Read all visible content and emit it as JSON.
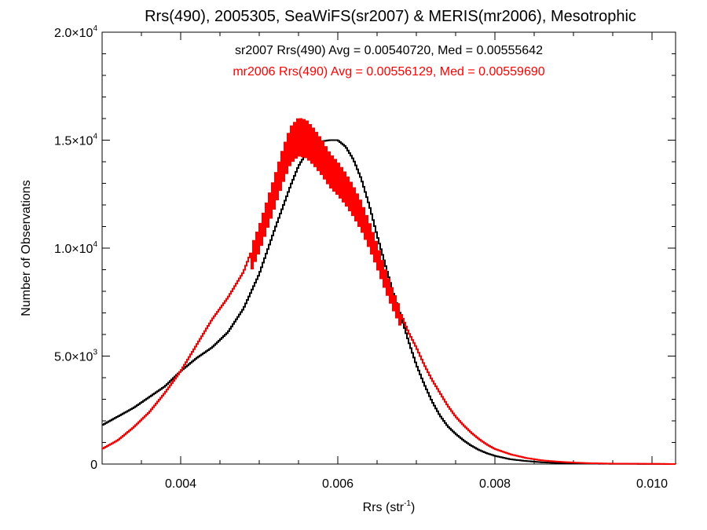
{
  "chart_data": {
    "type": "line",
    "title": "Rrs(490), 2005305, SeaWiFS(sr2007) & MERIS(mr2006), Mesotrophic",
    "xlabel_main": "Rrs (str",
    "xlabel_sup": "-1",
    "xlabel_close": ")",
    "ylabel": "Number of Observations",
    "xlim": [
      0.003,
      0.0103
    ],
    "ylim": [
      0,
      20000
    ],
    "x_ticks": [
      {
        "value": 0.004,
        "label": "0.004"
      },
      {
        "value": 0.006,
        "label": "0.006"
      },
      {
        "value": 0.008,
        "label": "0.008"
      },
      {
        "value": 0.01,
        "label": "0.010"
      }
    ],
    "y_ticks": [
      {
        "value": 0,
        "mantissa": "0",
        "exp": ""
      },
      {
        "value": 5000,
        "mantissa": "5.0×10",
        "exp": "3"
      },
      {
        "value": 10000,
        "mantissa": "1.0×10",
        "exp": "4"
      },
      {
        "value": 15000,
        "mantissa": "1.5×10",
        "exp": "4"
      },
      {
        "value": 20000,
        "mantissa": "2.0×10",
        "exp": "4"
      }
    ],
    "grid": false,
    "legend_position": "top-center",
    "series": [
      {
        "name": "sr2007 Rrs(490) Avg = 0.00540720, Med = 0.00555642",
        "color": "#000000",
        "x": [
          0.003,
          0.0032,
          0.0034,
          0.0036,
          0.0038,
          0.004,
          0.0042,
          0.0044,
          0.0046,
          0.0048,
          0.005,
          0.0052,
          0.0054,
          0.0055,
          0.0056,
          0.0057,
          0.0058,
          0.0059,
          0.006,
          0.0061,
          0.0062,
          0.0063,
          0.0064,
          0.0065,
          0.0066,
          0.0067,
          0.0068,
          0.0069,
          0.007,
          0.0071,
          0.0072,
          0.0073,
          0.0074,
          0.0075,
          0.0076,
          0.0077,
          0.0078,
          0.0079,
          0.008,
          0.0082,
          0.0084,
          0.0086,
          0.0088,
          0.009,
          0.0092,
          0.0095,
          0.01,
          0.0103
        ],
        "y": [
          1800,
          2200,
          2600,
          3100,
          3600,
          4300,
          4900,
          5400,
          6100,
          7200,
          8800,
          10900,
          12900,
          13800,
          14400,
          14800,
          14950,
          15000,
          15000,
          14700,
          14100,
          13200,
          12000,
          10600,
          9300,
          8000,
          6900,
          5700,
          4600,
          3700,
          2900,
          2250,
          1750,
          1400,
          1100,
          850,
          650,
          500,
          380,
          220,
          140,
          80,
          50,
          30,
          20,
          10,
          5,
          0
        ]
      },
      {
        "name": "mr2006 Rrs(490) Avg = 0.00556129, Med = 0.00559690",
        "color": "#ff0000",
        "x": [
          0.003,
          0.0032,
          0.0034,
          0.0036,
          0.0038,
          0.004,
          0.0042,
          0.0044,
          0.0046,
          0.0048,
          0.005,
          0.0052,
          0.0053,
          0.0054,
          0.0055,
          0.0056,
          0.0057,
          0.0058,
          0.0059,
          0.006,
          0.0061,
          0.0062,
          0.0063,
          0.0064,
          0.0065,
          0.0066,
          0.0067,
          0.0068,
          0.0069,
          0.007,
          0.0071,
          0.0072,
          0.0073,
          0.0074,
          0.0075,
          0.0076,
          0.0077,
          0.0078,
          0.0079,
          0.008,
          0.0082,
          0.0084,
          0.0086,
          0.0088,
          0.009,
          0.0092,
          0.0095,
          0.01,
          0.0103
        ],
        "y": [
          700,
          1100,
          1700,
          2400,
          3300,
          4300,
          5500,
          6700,
          7700,
          8900,
          10800,
          13100,
          14300,
          15300,
          15700,
          15600,
          15200,
          14700,
          14100,
          13700,
          13200,
          12600,
          11900,
          11000,
          10000,
          8900,
          7900,
          7000,
          6100,
          5400,
          4600,
          3900,
          3300,
          2700,
          2200,
          1800,
          1450,
          1150,
          900,
          700,
          450,
          280,
          170,
          110,
          70,
          40,
          20,
          10,
          0
        ]
      }
    ]
  }
}
